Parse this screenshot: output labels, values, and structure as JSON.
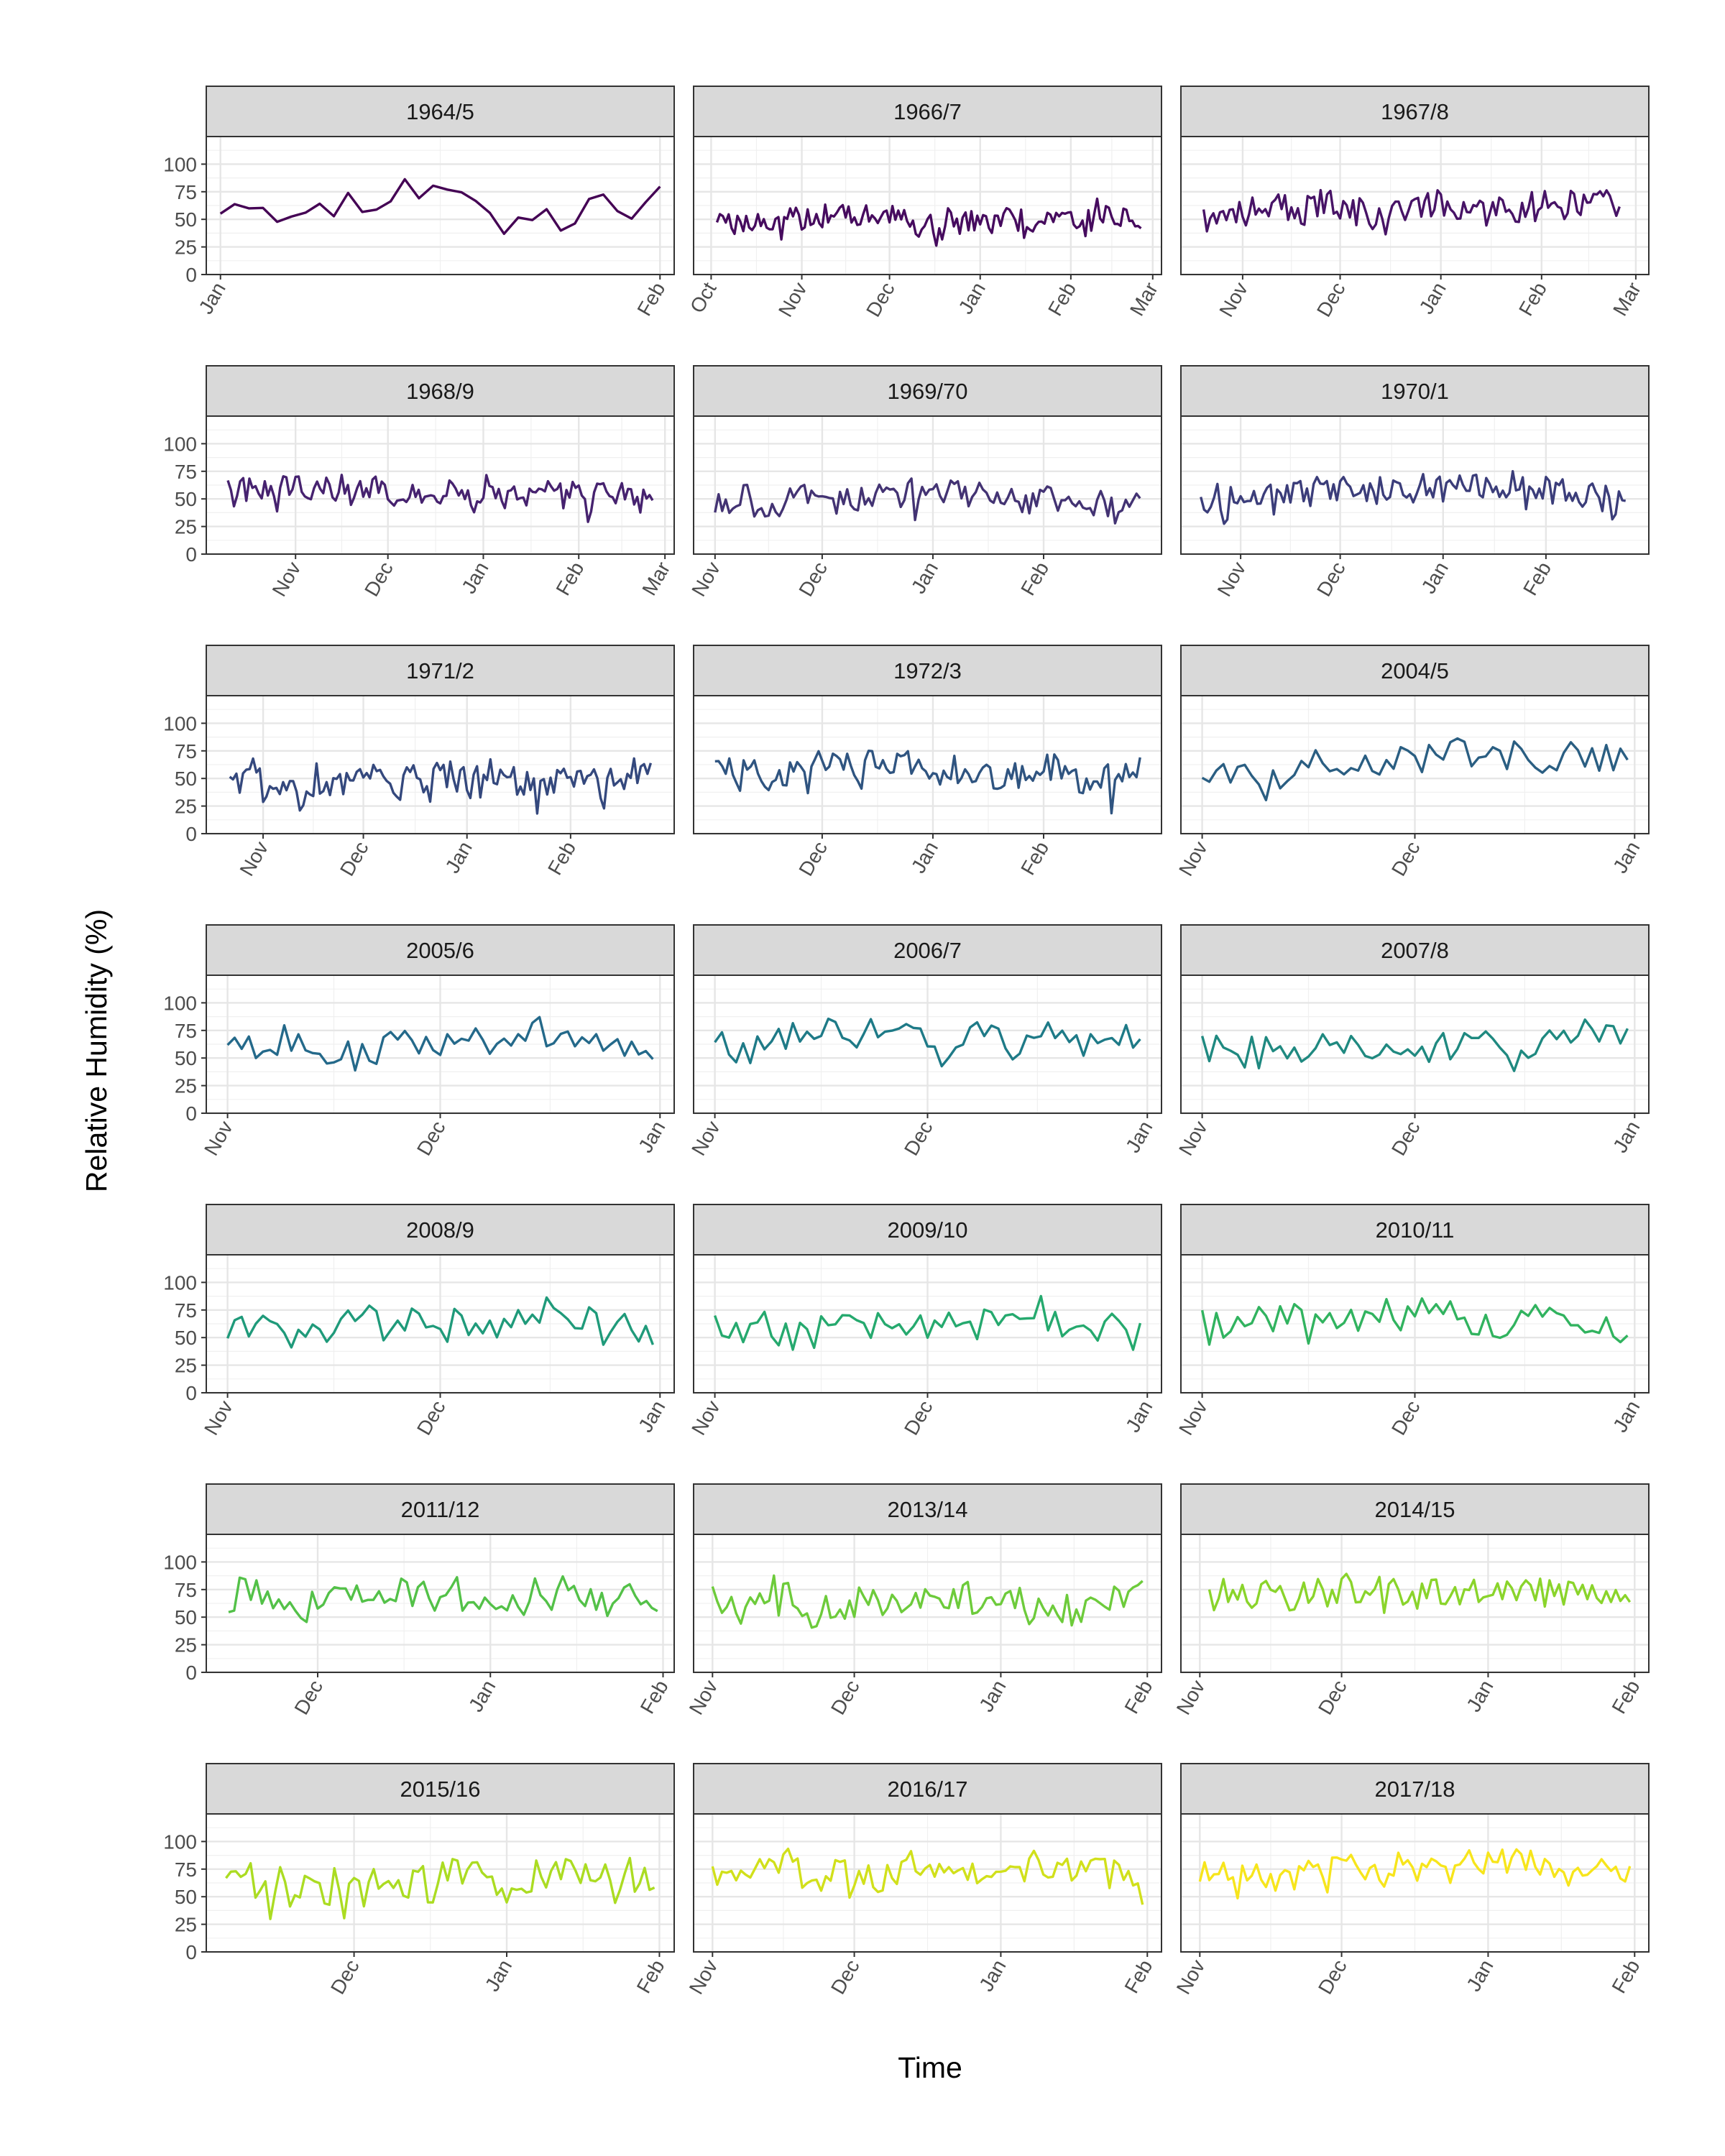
{
  "chart_data": {
    "type": "line",
    "layout": "facet-grid",
    "xlabel": "Time",
    "ylabel": "Relative Humidity (%)",
    "ylim": [
      0,
      125
    ],
    "yticks": [
      0,
      25,
      50,
      75,
      100
    ],
    "grid": true,
    "legend": "none",
    "panels": [
      {
        "name": "1964/5",
        "start": "1965-01-01",
        "end": "1965-02-01",
        "xlim": [
          "1964-12-31",
          "1965-02-02"
        ],
        "ticks": [
          {
            "date": "1965-01-01",
            "label": "Jan"
          },
          {
            "date": "1965-02-01",
            "label": "Feb"
          }
        ],
        "color": "#440154",
        "base": 65,
        "var": 15,
        "seed": 11
      },
      {
        "name": "1966/7",
        "start": "1966-10-03",
        "end": "1967-02-25",
        "xlim": [
          "1966-09-25",
          "1967-03-04"
        ],
        "ticks": [
          {
            "date": "1966-10-01",
            "label": "Oct"
          },
          {
            "date": "1966-11-01",
            "label": "Nov"
          },
          {
            "date": "1966-12-01",
            "label": "Dec"
          },
          {
            "date": "1967-01-01",
            "label": "Jan"
          },
          {
            "date": "1967-02-01",
            "label": "Feb"
          },
          {
            "date": "1967-03-01",
            "label": "Mar"
          }
        ],
        "color": "#460b5e",
        "base": 52,
        "var": 10,
        "seed": 23
      },
      {
        "name": "1967/8",
        "start": "1967-10-20",
        "end": "1968-02-25",
        "xlim": [
          "1967-10-13",
          "1968-03-05"
        ],
        "ticks": [
          {
            "date": "1967-11-01",
            "label": "Nov"
          },
          {
            "date": "1967-12-01",
            "label": "Dec"
          },
          {
            "date": "1968-01-01",
            "label": "Jan"
          },
          {
            "date": "1968-02-01",
            "label": "Feb"
          },
          {
            "date": "1968-03-01",
            "label": "Mar"
          }
        ],
        "color": "#471366",
        "base": 58,
        "var": 13,
        "seed": 37
      },
      {
        "name": "1968/9",
        "start": "1968-10-10",
        "end": "1969-02-25",
        "xlim": [
          "1968-10-03",
          "1969-03-04"
        ],
        "ticks": [
          {
            "date": "1968-11-01",
            "label": "Nov"
          },
          {
            "date": "1968-12-01",
            "label": "Dec"
          },
          {
            "date": "1969-01-01",
            "label": "Jan"
          },
          {
            "date": "1969-02-01",
            "label": "Feb"
          },
          {
            "date": "1969-03-01",
            "label": "Mar"
          }
        ],
        "color": "#46226f",
        "base": 58,
        "var": 11,
        "seed": 41
      },
      {
        "name": "1969/70",
        "start": "1969-11-01",
        "end": "1970-02-28",
        "xlim": [
          "1969-10-26",
          "1970-03-06"
        ],
        "ticks": [
          {
            "date": "1969-11-01",
            "label": "Nov"
          },
          {
            "date": "1969-12-01",
            "label": "Dec"
          },
          {
            "date": "1970-01-01",
            "label": "Jan"
          },
          {
            "date": "1970-02-01",
            "label": "Feb"
          }
        ],
        "color": "#433373",
        "base": 50,
        "var": 12,
        "seed": 53
      },
      {
        "name": "1970/1",
        "start": "1970-10-20",
        "end": "1971-02-25",
        "xlim": [
          "1970-10-14",
          "1971-03-04"
        ],
        "ticks": [
          {
            "date": "1970-11-01",
            "label": "Nov"
          },
          {
            "date": "1970-12-01",
            "label": "Dec"
          },
          {
            "date": "1971-01-01",
            "label": "Jan"
          },
          {
            "date": "1971-02-01",
            "label": "Feb"
          }
        ],
        "color": "#3b3d7a",
        "base": 58,
        "var": 13,
        "seed": 67
      },
      {
        "name": "1971/2",
        "start": "1971-10-22",
        "end": "1972-02-25",
        "xlim": [
          "1971-10-15",
          "1972-03-03"
        ],
        "ticks": [
          {
            "date": "1971-11-01",
            "label": "Nov"
          },
          {
            "date": "1971-12-01",
            "label": "Dec"
          },
          {
            "date": "1972-01-01",
            "label": "Jan"
          },
          {
            "date": "1972-02-01",
            "label": "Feb"
          }
        ],
        "color": "#34487d",
        "base": 48,
        "var": 14,
        "seed": 71
      },
      {
        "name": "1972/3",
        "start": "1972-11-01",
        "end": "1973-02-28",
        "xlim": [
          "1972-10-26",
          "1973-03-06"
        ],
        "ticks": [
          {
            "date": "1972-12-01",
            "label": "Dec"
          },
          {
            "date": "1973-01-01",
            "label": "Jan"
          },
          {
            "date": "1973-02-01",
            "label": "Feb"
          }
        ],
        "color": "#2f5480",
        "base": 60,
        "var": 13,
        "seed": 83
      },
      {
        "name": "2004/5",
        "start": "2004-11-01",
        "end": "2004-12-31",
        "xlim": [
          "2004-10-29",
          "2005-01-03"
        ],
        "ticks": [
          {
            "date": "2004-11-01",
            "label": "Nov"
          },
          {
            "date": "2004-12-01",
            "label": "Dec"
          },
          {
            "date": "2005-01-01",
            "label": "Jan"
          }
        ],
        "color": "#2a5e82",
        "base": 65,
        "var": 14,
        "seed": 97
      },
      {
        "name": "2005/6",
        "start": "2005-11-01",
        "end": "2005-12-31",
        "xlim": [
          "2005-10-29",
          "2006-01-03"
        ],
        "ticks": [
          {
            "date": "2005-11-01",
            "label": "Nov"
          },
          {
            "date": "2005-12-01",
            "label": "Dec"
          },
          {
            "date": "2006-01-01",
            "label": "Jan"
          }
        ],
        "color": "#24698a",
        "base": 66,
        "var": 14,
        "seed": 101
      },
      {
        "name": "2006/7",
        "start": "2006-11-01",
        "end": "2006-12-31",
        "xlim": [
          "2006-10-29",
          "2007-01-03"
        ],
        "ticks": [
          {
            "date": "2006-11-01",
            "label": "Nov"
          },
          {
            "date": "2006-12-01",
            "label": "Dec"
          },
          {
            "date": "2007-01-01",
            "label": "Jan"
          }
        ],
        "color": "#1e7a87",
        "base": 66,
        "var": 14,
        "seed": 113
      },
      {
        "name": "2007/8",
        "start": "2007-11-01",
        "end": "2007-12-31",
        "xlim": [
          "2007-10-29",
          "2008-01-03"
        ],
        "ticks": [
          {
            "date": "2007-11-01",
            "label": "Nov"
          },
          {
            "date": "2007-12-01",
            "label": "Dec"
          },
          {
            "date": "2008-01-01",
            "label": "Jan"
          }
        ],
        "color": "#1f8980",
        "base": 64,
        "var": 14,
        "seed": 127
      },
      {
        "name": "2008/9",
        "start": "2008-11-01",
        "end": "2008-12-31",
        "xlim": [
          "2008-10-29",
          "2009-01-03"
        ],
        "ticks": [
          {
            "date": "2008-11-01",
            "label": "Nov"
          },
          {
            "date": "2008-12-01",
            "label": "Dec"
          },
          {
            "date": "2009-01-01",
            "label": "Jan"
          }
        ],
        "color": "#1f9a7a",
        "base": 62,
        "var": 15,
        "seed": 131
      },
      {
        "name": "2009/10",
        "start": "2009-11-01",
        "end": "2009-12-31",
        "xlim": [
          "2009-10-29",
          "2010-01-03"
        ],
        "ticks": [
          {
            "date": "2009-11-01",
            "label": "Nov"
          },
          {
            "date": "2009-12-01",
            "label": "Dec"
          },
          {
            "date": "2010-01-01",
            "label": "Jan"
          }
        ],
        "color": "#25a96e",
        "base": 64,
        "var": 14,
        "seed": 149
      },
      {
        "name": "2010/11",
        "start": "2010-11-01",
        "end": "2010-12-31",
        "xlim": [
          "2010-10-29",
          "2011-01-03"
        ],
        "ticks": [
          {
            "date": "2010-11-01",
            "label": "Nov"
          },
          {
            "date": "2010-12-01",
            "label": "Dec"
          },
          {
            "date": "2011-01-01",
            "label": "Jan"
          }
        ],
        "color": "#31b35f",
        "base": 63,
        "var": 15,
        "seed": 151
      },
      {
        "name": "2011/12",
        "start": "2011-11-15",
        "end": "2012-01-31",
        "xlim": [
          "2011-11-11",
          "2012-02-03"
        ],
        "ticks": [
          {
            "date": "2011-12-01",
            "label": "Dec"
          },
          {
            "date": "2012-01-01",
            "label": "Jan"
          },
          {
            "date": "2012-02-01",
            "label": "Feb"
          }
        ],
        "color": "#53c148",
        "base": 70,
        "var": 15,
        "seed": 163
      },
      {
        "name": "2013/14",
        "start": "2013-11-01",
        "end": "2014-01-31",
        "xlim": [
          "2013-10-28",
          "2014-02-04"
        ],
        "ticks": [
          {
            "date": "2013-11-01",
            "label": "Nov"
          },
          {
            "date": "2013-12-01",
            "label": "Dec"
          },
          {
            "date": "2014-01-01",
            "label": "Jan"
          },
          {
            "date": "2014-02-01",
            "label": "Feb"
          }
        ],
        "color": "#6dcb3b",
        "base": 66,
        "var": 15,
        "seed": 173
      },
      {
        "name": "2014/15",
        "start": "2014-11-03",
        "end": "2015-01-31",
        "xlim": [
          "2014-10-28",
          "2015-02-04"
        ],
        "ticks": [
          {
            "date": "2014-11-01",
            "label": "Nov"
          },
          {
            "date": "2014-12-01",
            "label": "Dec"
          },
          {
            "date": "2015-01-01",
            "label": "Jan"
          },
          {
            "date": "2015-02-01",
            "label": "Feb"
          }
        ],
        "color": "#8ad42b",
        "base": 72,
        "var": 13,
        "seed": 181
      },
      {
        "name": "2015/16",
        "start": "2015-11-05",
        "end": "2016-01-31",
        "xlim": [
          "2015-11-01",
          "2016-02-04"
        ],
        "ticks": [
          {
            "date": "2015-12-01",
            "label": "Dec"
          },
          {
            "date": "2016-01-01",
            "label": "Jan"
          },
          {
            "date": "2016-02-01",
            "label": "Feb"
          }
        ],
        "color": "#abdc22",
        "base": 66,
        "var": 16,
        "seed": 191
      },
      {
        "name": "2016/17",
        "start": "2016-11-01",
        "end": "2017-01-31",
        "xlim": [
          "2016-10-28",
          "2017-02-04"
        ],
        "ticks": [
          {
            "date": "2016-11-01",
            "label": "Nov"
          },
          {
            "date": "2016-12-01",
            "label": "Dec"
          },
          {
            "date": "2017-01-01",
            "label": "Jan"
          },
          {
            "date": "2017-02-01",
            "label": "Feb"
          }
        ],
        "color": "#d1e01b",
        "base": 72,
        "var": 13,
        "seed": 193
      },
      {
        "name": "2017/18",
        "start": "2017-11-01",
        "end": "2018-01-31",
        "xlim": [
          "2017-10-28",
          "2018-02-04"
        ],
        "ticks": [
          {
            "date": "2017-11-01",
            "label": "Nov"
          },
          {
            "date": "2017-12-01",
            "label": "Dec"
          },
          {
            "date": "2018-01-01",
            "label": "Jan"
          },
          {
            "date": "2018-02-01",
            "label": "Feb"
          }
        ],
        "color": "#f7e51c",
        "base": 74,
        "var": 12,
        "seed": 197
      }
    ]
  }
}
